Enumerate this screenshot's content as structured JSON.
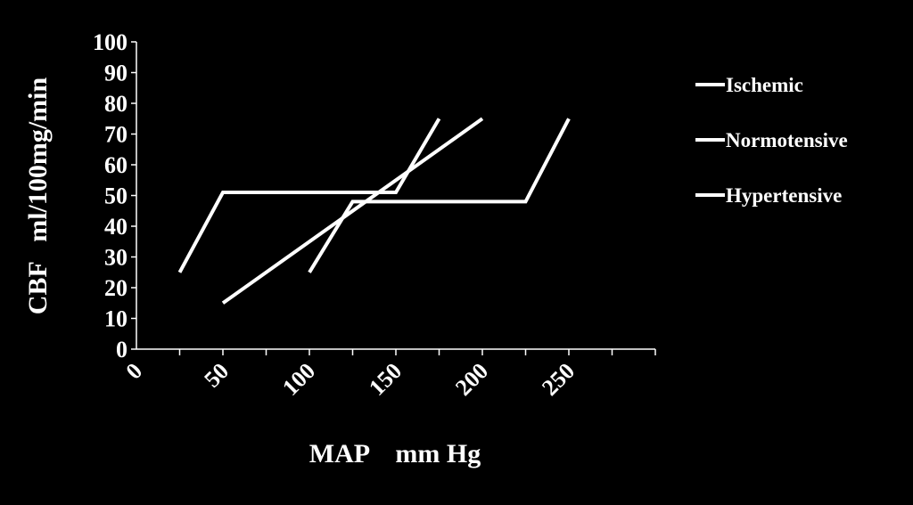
{
  "chart_data": {
    "type": "line",
    "xlabel": "MAP    mm Hg",
    "ylabel": "CBF   ml/100mg/min",
    "xlim": [
      0,
      300
    ],
    "ylim": [
      0,
      100
    ],
    "x_ticks": [
      0,
      50,
      100,
      150,
      200,
      250
    ],
    "y_ticks": [
      0,
      10,
      20,
      30,
      40,
      50,
      60,
      70,
      80,
      90,
      100
    ],
    "grid": false,
    "legend_position": "right",
    "colors": {
      "background": "#000000",
      "foreground": "#ffffff",
      "line": "#ffffff"
    },
    "series": [
      {
        "name": "Ischemic",
        "points": [
          [
            100,
            25
          ],
          [
            125,
            48
          ],
          [
            225,
            48
          ],
          [
            250,
            75
          ]
        ]
      },
      {
        "name": "Normotensive",
        "points": [
          [
            25,
            25
          ],
          [
            50,
            51
          ],
          [
            150,
            51
          ],
          [
            175,
            75
          ]
        ]
      },
      {
        "name": "Hypertensive",
        "points": [
          [
            50,
            15
          ],
          [
            200,
            75
          ]
        ]
      }
    ]
  }
}
